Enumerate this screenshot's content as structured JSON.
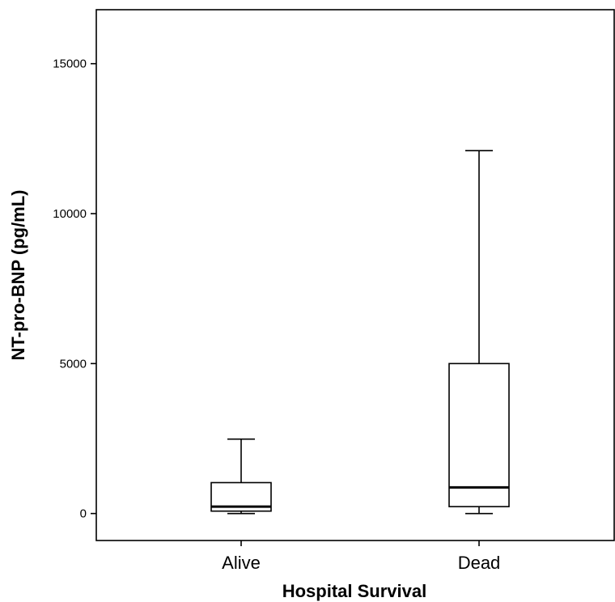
{
  "chart_data": {
    "type": "box",
    "xlabel": "Hospital Survival",
    "ylabel": "NT-pro-BNP (pg/mL)",
    "ylim": [
      -900,
      16800
    ],
    "yticks": [
      0,
      5000,
      10000,
      15000
    ],
    "ytick_labels": [
      "0",
      "5000",
      "10000",
      "15000"
    ],
    "categories": [
      "Alive",
      "Dead"
    ],
    "boxes": [
      {
        "category": "Alive",
        "whisker_low": 0,
        "q1": 80,
        "median": 230,
        "q3": 1030,
        "whisker_high": 2480
      },
      {
        "category": "Dead",
        "whisker_low": 0,
        "q1": 230,
        "median": 870,
        "q3": 5000,
        "whisker_high": 12100
      }
    ],
    "grid": false,
    "legend": "none"
  }
}
